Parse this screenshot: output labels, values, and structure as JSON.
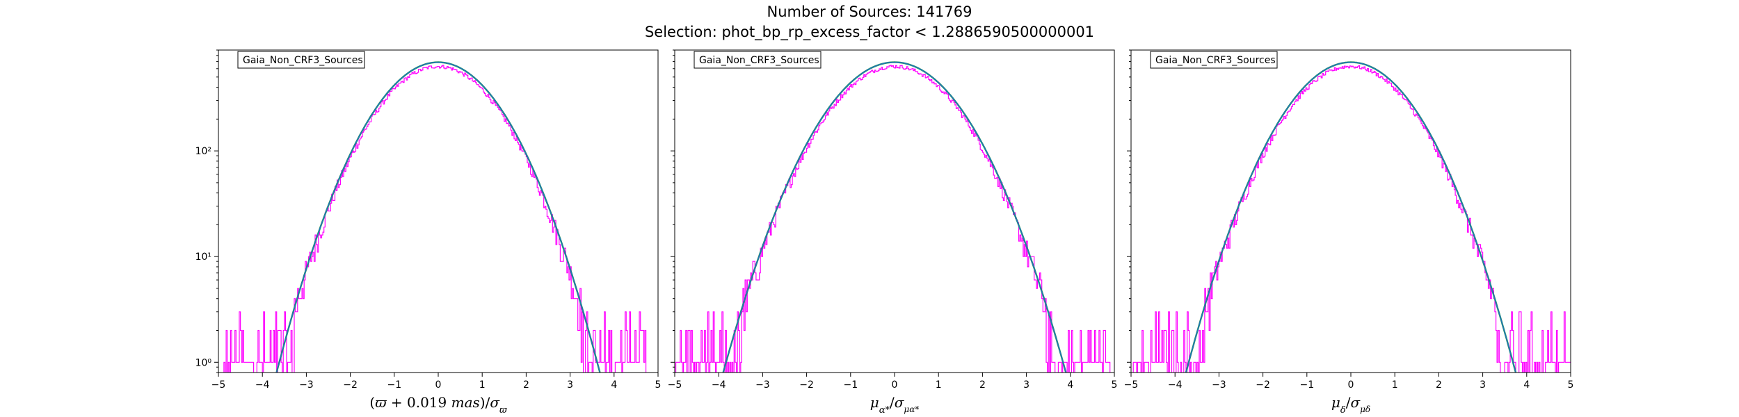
{
  "header": {
    "title": "Number of Sources: 141769",
    "subtitle": "Selection: phot_bp_rp_excess_factor < 1.2886590500000001"
  },
  "colors": {
    "histogram": "#ff00ff",
    "fit_curve": "#1f77b4",
    "fit_overlay": "#2ca02c"
  },
  "chart_data": [
    {
      "type": "line",
      "legend": "Gaia_Non_CRF3_Sources",
      "xlabel": "(ϖ + 0.019 mas)/σϖ",
      "xlim": [
        -5,
        5
      ],
      "ylim": [
        0.8,
        900
      ],
      "yscale": "log",
      "xticks": [
        "−5",
        "−4",
        "−3",
        "−2",
        "−1",
        "0",
        "1",
        "2",
        "3",
        "4",
        "5"
      ],
      "yticks": [
        "10⁰",
        "10¹",
        "10²"
      ],
      "fit": {
        "amplitude": 690,
        "mean": 0.0,
        "sigma": 1.0
      },
      "histogram_peak": 630,
      "x_extent": [
        -4.9,
        4.75
      ]
    },
    {
      "type": "line",
      "legend": "Gaia_Non_CRF3_Sources",
      "xlabel": "μα*/σμα*",
      "xlim": [
        -5,
        5
      ],
      "ylim": [
        0.8,
        900
      ],
      "yscale": "log",
      "xticks": [
        "−5",
        "−4",
        "−3",
        "−2",
        "−1",
        "0",
        "1",
        "2",
        "3",
        "4",
        "5"
      ],
      "yticks": [
        "10⁰",
        "10¹",
        "10²"
      ],
      "fit": {
        "amplitude": 690,
        "mean": 0.0,
        "sigma": 1.06
      },
      "histogram_peak": 630,
      "x_extent": [
        -4.98,
        4.9
      ]
    },
    {
      "type": "line",
      "legend": "Gaia_Non_CRF3_Sources",
      "xlabel": "μδ/σμδ",
      "xlim": [
        -5,
        5
      ],
      "ylim": [
        0.8,
        900
      ],
      "yscale": "log",
      "xticks": [
        "−5",
        "−4",
        "−3",
        "−2",
        "−1",
        "0",
        "1",
        "2",
        "3",
        "4",
        "5"
      ],
      "yticks": [
        "10⁰",
        "10¹",
        "10²"
      ],
      "fit": {
        "amplitude": 690,
        "mean": 0.0,
        "sigma": 1.02
      },
      "histogram_peak": 630,
      "x_extent": [
        -4.95,
        5.0
      ]
    }
  ]
}
